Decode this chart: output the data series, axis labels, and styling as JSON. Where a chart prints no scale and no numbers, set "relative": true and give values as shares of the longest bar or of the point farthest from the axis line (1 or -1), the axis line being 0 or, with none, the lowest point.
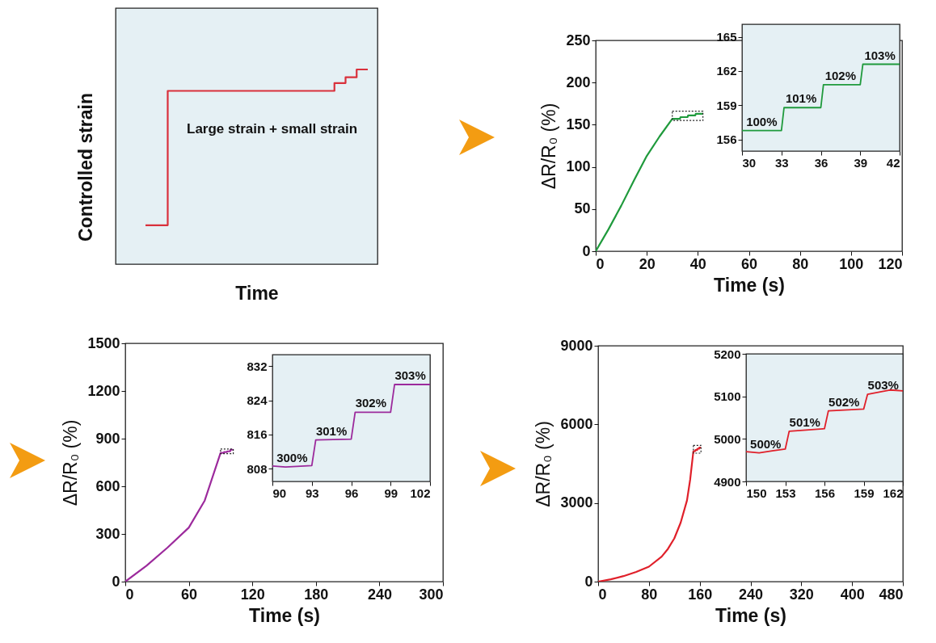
{
  "chart_data": [
    {
      "type": "step",
      "relative": true,
      "xlabel": "Time",
      "ylabel": "Controlled strain",
      "annotations": [
        "Large strain + small strain"
      ],
      "color": "#d9303b",
      "categories": [
        null,
        null,
        null,
        null,
        null,
        null,
        null,
        null,
        null,
        null,
        null,
        null,
        null,
        null,
        null,
        null,
        null,
        null,
        null,
        null,
        null
      ],
      "values": [
        0.2,
        0.2,
        0.89,
        0.89,
        0.89,
        0.89,
        0.89,
        0.89,
        0.89,
        0.89,
        0.89,
        0.89,
        0.89,
        0.89,
        0.89,
        0.89,
        0.89,
        0.93,
        0.96,
        1,
        1
      ]
    },
    {
      "type": "line",
      "xlabel": "Time (s)",
      "ylabel": "ΔR/R₀ (%)",
      "color": "#1f9a3c",
      "x": [
        0,
        5,
        10,
        15,
        20,
        25,
        30,
        33,
        33.2,
        36,
        36.2,
        39,
        39.2,
        42
      ],
      "values": [
        0,
        26,
        54,
        84,
        113,
        136,
        157,
        157,
        159,
        159,
        161,
        161,
        163,
        163
      ],
      "xlim": [
        0,
        120
      ],
      "ylim": [
        0,
        250
      ],
      "xticks": [
        0,
        20,
        40,
        60,
        80,
        100,
        120
      ],
      "yticks": [
        0,
        50,
        100,
        150,
        200,
        250
      ]
    },
    {
      "type": "line",
      "color": "#1f9a3c",
      "x": [
        30,
        33,
        33.2,
        36,
        36.2,
        39,
        39.2,
        42
      ],
      "values": [
        156.8,
        156.8,
        158.8,
        158.8,
        160.8,
        160.8,
        162.6,
        162.6
      ],
      "xlim": [
        30,
        42
      ],
      "ylim": [
        155,
        166.1
      ],
      "xticks": [
        30,
        33,
        36,
        39,
        42
      ],
      "yticks": [
        156,
        159,
        162,
        165
      ],
      "annotations": [
        "100%",
        "101%",
        "102%",
        "103%"
      ]
    },
    {
      "type": "line",
      "xlabel": "Time (s)",
      "ylabel": "ΔR/R₀ (%)",
      "color": "#9c2a9c",
      "x": [
        0,
        20,
        40,
        60,
        75,
        90,
        93,
        93.3,
        96,
        96.3,
        99,
        99.3,
        102
      ],
      "values": [
        0,
        100,
        215,
        340,
        510,
        810,
        810,
        815,
        815,
        820,
        820,
        830,
        830
      ],
      "xlim": [
        0,
        300
      ],
      "ylim": [
        0,
        1500
      ],
      "xticks": [
        0,
        60,
        120,
        180,
        240,
        300
      ],
      "yticks": [
        0,
        300,
        600,
        900,
        1200,
        1500
      ]
    },
    {
      "type": "line",
      "color": "#9c2a9c",
      "x": [
        90,
        91,
        93,
        93.3,
        96,
        96.3,
        99,
        99.3,
        102
      ],
      "values": [
        808.6,
        808.4,
        808.7,
        814.7,
        814.9,
        821.2,
        821.2,
        827.7,
        827.7
      ],
      "xlim": [
        90,
        102
      ],
      "ylim": [
        805,
        834.7
      ],
      "xticks": [
        90,
        93,
        96,
        99,
        102
      ],
      "yticks": [
        808,
        816,
        824,
        832
      ],
      "annotations": [
        "300%",
        "301%",
        "302%",
        "303%"
      ]
    },
    {
      "type": "line",
      "xlabel": "Time (s)",
      "ylabel": "ΔR/R₀ (%)",
      "color": "#e0202a",
      "x": [
        0,
        20,
        40,
        60,
        80,
        100,
        110,
        120,
        130,
        140,
        145,
        150,
        153,
        153.3,
        156,
        156.3,
        159,
        159.3,
        162
      ],
      "values": [
        0,
        90,
        210,
        370,
        570,
        950,
        1250,
        1650,
        2250,
        3100,
        3900,
        4970,
        4980,
        5020,
        5020,
        5070,
        5070,
        5110,
        5110
      ],
      "xlim": [
        0,
        480
      ],
      "ylim": [
        0,
        9000
      ],
      "xticks": [
        0,
        80,
        160,
        240,
        320,
        400,
        480
      ],
      "yticks": [
        0,
        3000,
        6000,
        9000
      ]
    },
    {
      "type": "line",
      "color": "#e0202a",
      "x": [
        150,
        151,
        152,
        153,
        153.3,
        156,
        156.3,
        159,
        159.3,
        161,
        162
      ],
      "values": [
        4970,
        4967,
        4972,
        4976,
        5018,
        5024,
        5066,
        5070,
        5105,
        5115,
        5113
      ],
      "xlim": [
        150,
        162
      ],
      "ylim": [
        4900,
        5200
      ],
      "xticks": [
        150,
        153,
        156,
        159,
        162
      ],
      "yticks": [
        4900,
        5000,
        5100,
        5200
      ],
      "annotations": [
        "500%",
        "501%",
        "502%",
        "503%"
      ]
    }
  ]
}
